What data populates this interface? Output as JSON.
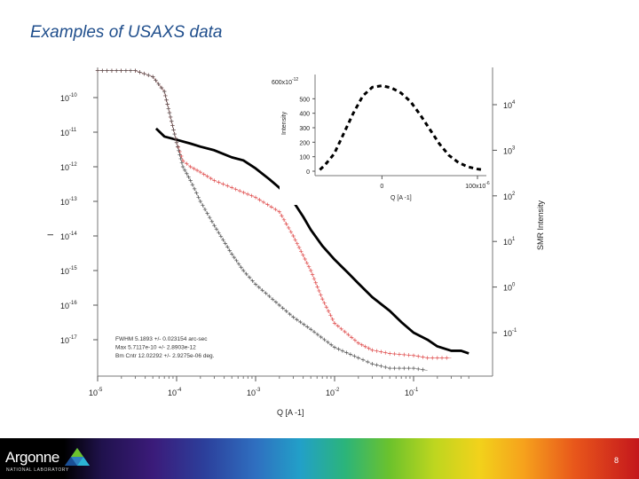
{
  "slide": {
    "title": "Examples of USAXS data",
    "page_number": "8",
    "logo_text": "Argonne",
    "logo_sub": "NATIONAL LABORATORY"
  },
  "colors": {
    "title": "#1f4e8c",
    "main_black": "#000000",
    "red_series": "#e05050",
    "gray_series": "#555555"
  },
  "chart_data": [
    {
      "type": "line",
      "scale": "log-log",
      "xlabel": "Q [A -1]",
      "ylabel_left": "I",
      "ylabel_right": "SMR Intensity",
      "x_ticks": [
        {
          "base": "10",
          "exp": "-5",
          "value": 1e-05
        },
        {
          "base": "10",
          "exp": "-4",
          "value": 0.0001
        },
        {
          "base": "10",
          "exp": "-3",
          "value": 0.001
        },
        {
          "base": "10",
          "exp": "-2",
          "value": 0.01
        },
        {
          "base": "10",
          "exp": "-1",
          "value": 0.1
        }
      ],
      "y_left_ticks": [
        {
          "base": "10",
          "exp": "-10",
          "value": 1e-10
        },
        {
          "base": "10",
          "exp": "-11",
          "value": 1e-11
        },
        {
          "base": "10",
          "exp": "-12",
          "value": 1e-12
        },
        {
          "base": "10",
          "exp": "-13",
          "value": 1e-13
        },
        {
          "base": "10",
          "exp": "-14",
          "value": 1e-14
        },
        {
          "base": "10",
          "exp": "-15",
          "value": 1e-15
        },
        {
          "base": "10",
          "exp": "-16",
          "value": 1e-16
        },
        {
          "base": "10",
          "exp": "-17",
          "value": 1e-17
        }
      ],
      "y_right_ticks": [
        {
          "base": "10",
          "exp": "4",
          "value": 10000
        },
        {
          "base": "10",
          "exp": "3",
          "value": 1000
        },
        {
          "base": "10",
          "exp": "2",
          "value": 100
        },
        {
          "base": "10",
          "exp": "1",
          "value": 10
        },
        {
          "base": "10",
          "exp": "0",
          "value": 1
        },
        {
          "base": "10",
          "exp": "-1",
          "value": 0.1
        }
      ],
      "annotation_lines": [
        "FWHM 5.1893 +/- 0.023154 arc-sec",
        "Max 5.7117e-10 +/- 2.8903e-12",
        "Bm Cntr 12.02292 +/- 2.9275e-06 deg."
      ],
      "series": [
        {
          "axis": "right",
          "style": "thick-solid",
          "color": "#000000",
          "x": [
            5.5e-05,
            7e-05,
            0.0001,
            0.00015,
            0.0002,
            0.0003,
            0.0005,
            0.0007,
            0.001,
            0.0015,
            0.002,
            0.003,
            0.004,
            0.005,
            0.007,
            0.01,
            0.015,
            0.02,
            0.03,
            0.05,
            0.07,
            0.1,
            0.15,
            0.2,
            0.3,
            0.4,
            0.5
          ],
          "y": [
            3000,
            2000,
            1700,
            1400,
            1200,
            1000,
            700,
            600,
            400,
            230,
            150,
            75,
            35,
            18,
            8,
            4,
            2,
            1.2,
            0.6,
            0.3,
            0.17,
            0.1,
            0.07,
            0.05,
            0.04,
            0.04,
            0.035
          ]
        },
        {
          "axis": "left",
          "style": "plus-markers",
          "color": "#e05050",
          "x": [
            1e-05,
            3e-05,
            5e-05,
            7e-05,
            0.0001,
            0.00012,
            0.00015,
            0.0002,
            0.0003,
            0.0005,
            0.001,
            0.002,
            0.003,
            0.005,
            0.007,
            0.01,
            0.02,
            0.03,
            0.05,
            0.1,
            0.15,
            0.2,
            0.3
          ],
          "y": [
            6e-10,
            6e-10,
            4e-10,
            1.5e-10,
            5e-12,
            1.5e-12,
            1e-12,
            7e-13,
            4e-13,
            2.5e-13,
            1.3e-13,
            5e-14,
            1e-14,
            1e-15,
            1.5e-16,
            3e-17,
            8e-18,
            5e-18,
            4e-18,
            3.5e-18,
            3e-18,
            3e-18,
            3e-18
          ]
        },
        {
          "axis": "left",
          "style": "plus-markers",
          "color": "#555555",
          "x": [
            1e-05,
            3e-05,
            5e-05,
            7e-05,
            0.0001,
            0.00012,
            0.00015,
            0.0002,
            0.0003,
            0.0005,
            0.0007,
            0.001,
            0.002,
            0.003,
            0.005,
            0.01,
            0.02,
            0.03,
            0.05,
            0.1,
            0.15
          ],
          "y": [
            6e-10,
            6e-10,
            4e-10,
            1.5e-10,
            5e-12,
            1e-12,
            4e-13,
            1e-13,
            2e-14,
            3e-15,
            1e-15,
            4e-16,
            1e-16,
            4.5e-17,
            2e-17,
            6e-18,
            3e-18,
            2e-18,
            1.5e-18,
            1.5e-18,
            1.3e-18
          ]
        }
      ]
    },
    {
      "type": "line",
      "role": "inset",
      "ylabel": "Intensity",
      "xlabel": "Q [A -1]",
      "y_top_label": "600x10",
      "y_top_exp": "-12",
      "y_ticks": [
        "500",
        "400",
        "300",
        "200",
        "100",
        "0"
      ],
      "y_tick_values": [
        500,
        400,
        300,
        200,
        100,
        0
      ],
      "x_ticks": [
        "0",
        "100x10"
      ],
      "x_tick_exp": "-6",
      "x_tick_values": [
        0,
        0.0001
      ],
      "xlim": [
        -7e-05,
        0.0001
      ],
      "ylim": [
        0,
        600
      ],
      "series": [
        {
          "style": "dashed",
          "color": "#000000",
          "x": [
            -6.5e-05,
            -6e-05,
            -5e-05,
            -4e-05,
            -3e-05,
            -2e-05,
            -1e-05,
            0,
            1e-05,
            2e-05,
            3e-05,
            4e-05,
            5e-05,
            6e-05,
            7e-05,
            8e-05,
            9e-05,
            0.0001,
            0.000105
          ],
          "y": [
            10,
            40,
            120,
            260,
            400,
            520,
            580,
            590,
            575,
            540,
            480,
            390,
            290,
            190,
            110,
            60,
            30,
            15,
            10
          ]
        }
      ]
    }
  ]
}
